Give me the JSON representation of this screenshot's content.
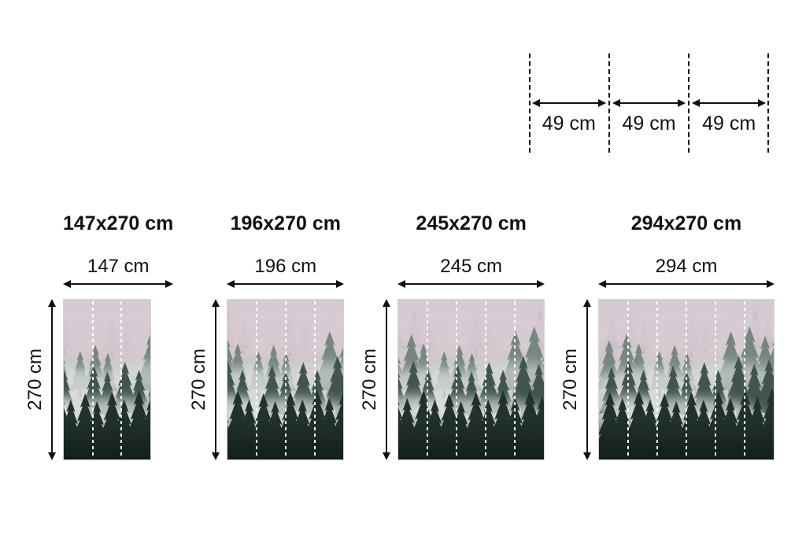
{
  "background": "#ffffff",
  "arrow_color": "#111111",
  "top_panel_diagram": {
    "description": "single wallpaper strip width",
    "segment_labels": [
      "49 cm",
      "49 cm",
      "49 cm"
    ]
  },
  "sizes": [
    {
      "title": "147x270 cm",
      "width_label": "147 cm",
      "height_label": "270 cm",
      "panels": 3
    },
    {
      "title": "196x270 cm",
      "width_label": "196 cm",
      "height_label": "270 cm",
      "panels": 4
    },
    {
      "title": "245x270 cm",
      "width_label": "245 cm",
      "height_label": "270 cm",
      "panels": 5
    },
    {
      "title": "294x270 cm",
      "width_label": "294 cm",
      "height_label": "270 cm",
      "panels": 6
    }
  ],
  "mural": {
    "description": "misty pine forest wall mural preview divided into 49 cm strips",
    "colors": {
      "fog_top": "#d7cad3",
      "fog_mid": "#dcdfdb",
      "trees_faint": "#a89fa7",
      "trees_far": "#6e7f77",
      "trees_mid": "#42554d",
      "trees_front": "#22322b",
      "strip_line": "#ffffff"
    }
  }
}
